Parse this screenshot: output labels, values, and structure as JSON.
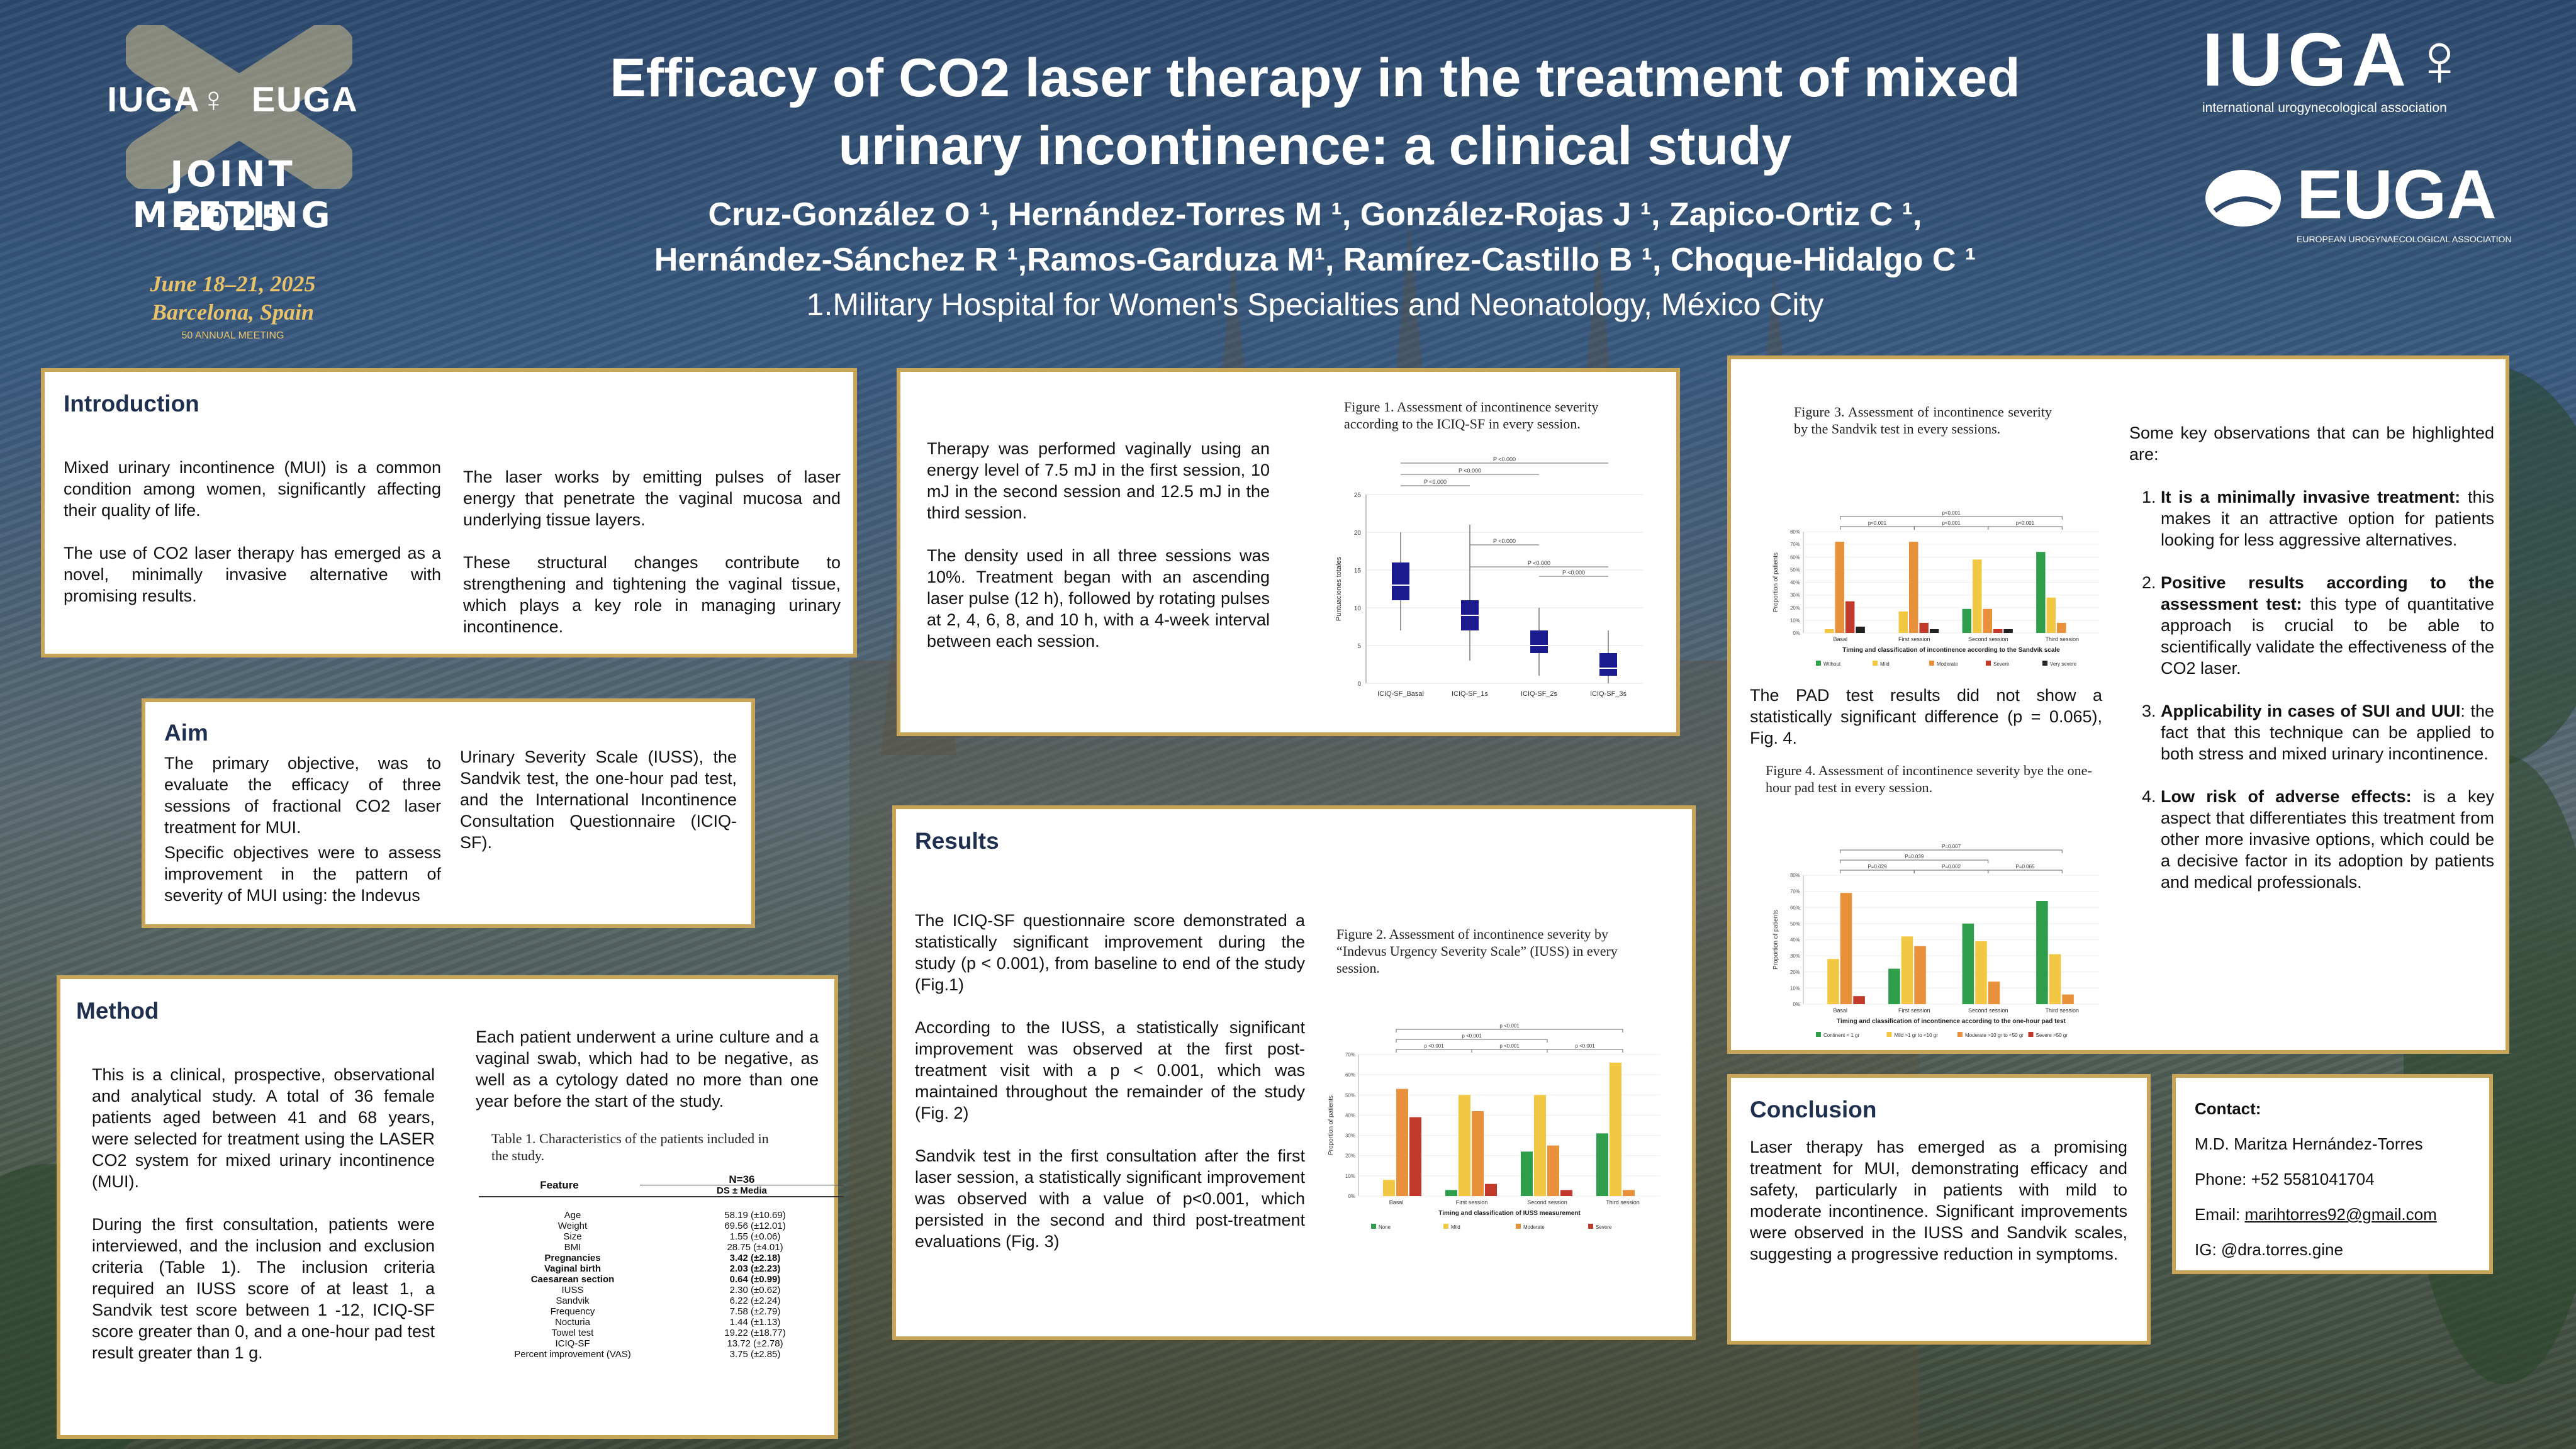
{
  "header": {
    "title_line1": "Efficacy of CO2 laser therapy in the treatment of mixed",
    "title_line2": "urinary incontinence: a clinical study",
    "authors_line1": "Cruz-González O ¹, Hernández-Torres M ¹, González-Rojas J ¹, Zapico-Ortiz C ¹,",
    "authors_line2": "Hernández-Sánchez R ¹,Ramos-Garduza M¹, Ramírez-Castillo B ¹, Choque-Hidalgo C ¹",
    "affiliation": "1.Military Hospital for Women's Specialties and Neonatology, México City"
  },
  "meeting": {
    "iuga": "IUGA♀",
    "euga": "EUGA",
    "line1": "JOINT MEETING",
    "line2": "2025",
    "dates": "June 18–21, 2025",
    "place": "Barcelona, Spain",
    "anniv": "50 ANNUAL MEETING"
  },
  "logos": {
    "iuga": "IUGA♀",
    "iuga_sub": "international urogynecological association",
    "euga": "EUGA",
    "euga_sub": "EUROPEAN UROGYNAECOLOGICAL ASSOCIATION"
  },
  "introduction": {
    "heading": "Introduction",
    "col1_p1": "Mixed urinary incontinence (MUI) is a common condition among women, significantly affecting their quality of life.",
    "col1_p2": "The use of CO2 laser therapy has emerged as a novel, minimally invasive alternative with promising results.",
    "col2_p1": "The laser works by emitting pulses of laser energy that penetrate the vaginal mucosa and underlying tissue layers.",
    "col2_p2": "These structural changes contribute to strengthening and tightening the vaginal tissue, which plays a key role in managing urinary incontinence."
  },
  "aim": {
    "heading": "Aim",
    "col1_p1": "The primary objective, was to evaluate the efficacy of three sessions of fractional CO2 laser treatment for MUI.",
    "col1_p2": "Specific objectives were to assess improvement in the pattern of severity of MUI  using: the Indevus",
    "col2_p1": "Urinary Severity Scale (IUSS), the Sandvik test, the one-hour pad test, and the International Incontinence Consultation Questionnaire (ICIQ-SF)."
  },
  "method": {
    "heading": "Method",
    "col1_p1": "This is a clinical, prospective, observational and analytical study. A total of 36 female patients aged between 41 and 68 years, were selected for treatment using the LASER CO2 system for mixed urinary incontinence (MUI).",
    "col1_p2": "During the first consultation, patients were interviewed, and the inclusion and exclusion criteria (Table 1). The inclusion criteria required an IUSS score of at least 1, a Sandvik test score between 1 -12, ICIQ-SF score greater than 0, and a one-hour pad test result greater than 1 g.",
    "col2_p1": "Each patient underwent a urine culture and a vaginal swab, which had to be negative, as well as a cytology dated no more than one year before the start of the study.",
    "table_caption": "Table 1. Characteristics of the patients included in the study.",
    "table_header_feature": "Feature",
    "table_header_n": "N=36",
    "table_header_ds": "DS ± Media",
    "table_rows": [
      {
        "feature": "Age",
        "value": "58.19 (±10.69)",
        "bold": false
      },
      {
        "feature": "Weight",
        "value": "69.56 (±12.01)",
        "bold": false
      },
      {
        "feature": "Size",
        "value": "1.55 (±0.06)",
        "bold": false
      },
      {
        "feature": "BMI",
        "value": "28.75 (±4.01)",
        "bold": false
      },
      {
        "feature": "Pregnancies",
        "value": "3.42 (±2.18)",
        "bold": true
      },
      {
        "feature": "Vaginal birth",
        "value": "2.03 (±2.23)",
        "bold": true
      },
      {
        "feature": "Caesarean section",
        "value": "0.64 (±0.99)",
        "bold": true
      },
      {
        "feature": "IUSS",
        "value": "2.30 (±0.62)",
        "bold": false
      },
      {
        "feature": "Sandvik",
        "value": "6.22 (±2.24)",
        "bold": false
      },
      {
        "feature": "Frequency",
        "value": "7.58 (±2.79)",
        "bold": false
      },
      {
        "feature": "Nocturia",
        "value": "1.44 (±1.13)",
        "bold": false
      },
      {
        "feature": "Towel test",
        "value": "19.22 (±18.77)",
        "bold": false
      },
      {
        "feature": "ICIQ-SF",
        "value": "13.72 (±2.78)",
        "bold": false
      },
      {
        "feature": "Percent improvement (VAS)",
        "value": "3.75 (±2.85)",
        "bold": false
      }
    ]
  },
  "therapy": {
    "p1": "Therapy was performed vaginally using an energy level of 7.5 mJ in the first session, 10 mJ in the second session and 12.5 mJ in the third session.",
    "p2": "The density used in all three sessions was 10%. Treatment began with an ascending laser pulse (12 h), followed by rotating pulses at 2, 4, 6, 8, and 10 h, with a 4-week interval between each session.",
    "fig1_caption": "Figure 1. Assessment of incontinence severity according to the ICIQ-SF in every session."
  },
  "results": {
    "heading": "Results",
    "p1": "The ICIQ-SF questionnaire score demonstrated a statistically significant improvement during the study (p < 0.001), from baseline to end of the study (Fig.1)",
    "p2": "According to the IUSS, a statistically significant improvement was observed at the first post-treatment visit with a p < 0.001, which was maintained throughout the remainder of the study (Fig. 2)",
    "p3": "Sandvik test  in the first consultation after the first laser session, a statistically significant improvement was observed with a value of p<0.001, which persisted in the second and third post-treatment evaluations (Fig. 3)",
    "fig2_caption": "Figure 2. Assessment of incontinence severity by “Indevus Urgency Severity Scale” (IUSS) in every session."
  },
  "observations": {
    "fig3_caption": "Figure 3. Assessment of incontinence severity by the Sandvik test in every sessions.",
    "pad_text": "The PAD test results did not show a statistically significant difference (p = 0.065), Fig. 4.",
    "fig4_caption": "Figure 4. Assessment of incontinence severity bye the one-hour pad test in every session.",
    "intro": "Some key observations that can be highlighted are:",
    "items": [
      {
        "bold": "It is a minimally invasive treatment:",
        "text": " this makes it an attractive option for patients looking for less aggressive alternatives."
      },
      {
        "bold": "Positive results according to the assessment test:",
        "text": " this type of quantitative approach is crucial to be able to scientifically validate the effectiveness of the CO2 laser."
      },
      {
        "bold": "Applicability in cases of SUI and UUI",
        "text": ": the fact that this technique can be applied to both stress and mixed urinary incontinence."
      },
      {
        "bold": "Low risk of adverse effects:",
        "text": " is a key aspect that differentiates this treatment from other more invasive options, which could be a decisive factor in its adoption by patients and medical professionals."
      }
    ]
  },
  "conclusion": {
    "heading": "Conclusion",
    "text": "Laser therapy has emerged as a promising treatment for MUI, demonstrating efficacy and safety, particularly in patients with mild to moderate incontinence. Significant improvements were observed in the IUSS and Sandvik scales, suggesting a progressive reduction in symptoms."
  },
  "contact": {
    "heading": "Contact:",
    "name": "M.D. Maritza Hernández-Torres",
    "phone": "Phone: +52 5581041704",
    "email_label": "Email: ",
    "email": "marihtorres92@gmail.com",
    "ig": "IG: @dra.torres.gine"
  },
  "chart_data": [
    {
      "type": "box",
      "id": "fig1",
      "ylabel": "Puntuaciones totales",
      "categories": [
        "ICIQ-SF_Basal",
        "ICIQ-SF_1s",
        "ICIQ-SF_2s",
        "ICIQ-SF_3s"
      ],
      "ylim": [
        0,
        25
      ],
      "boxes": [
        {
          "min": 7,
          "q1": 11,
          "median": 13,
          "q3": 16,
          "max": 20
        },
        {
          "min": 3,
          "q1": 7,
          "median": 9,
          "q3": 11,
          "max": 21
        },
        {
          "min": 1,
          "q1": 4,
          "median": 5,
          "q3": 7,
          "max": 10
        },
        {
          "min": 0,
          "q1": 1,
          "median": 2,
          "q3": 4,
          "max": 7
        }
      ],
      "annotations": [
        "P <0.000",
        "P <0.000",
        "P <0.000",
        "P <0.000",
        "P <0.000",
        "P <0.000"
      ]
    },
    {
      "type": "bar",
      "id": "fig2",
      "xlabel": "Timing and classification of IUSS measurement",
      "ylabel": "Proportion of patients",
      "categories": [
        "Basal",
        "First session",
        "Second session",
        "Third session"
      ],
      "ylim": [
        0,
        0.7
      ],
      "series": [
        {
          "name": "None",
          "color": "#2e9e4a",
          "values": [
            0.0,
            0.03,
            0.22,
            0.31
          ]
        },
        {
          "name": "Mild",
          "color": "#f2c744",
          "values": [
            0.08,
            0.5,
            0.5,
            0.66
          ]
        },
        {
          "name": "Moderate",
          "color": "#e8903a",
          "values": [
            0.53,
            0.42,
            0.25,
            0.03
          ]
        },
        {
          "name": "Severe",
          "color": "#c0392b",
          "values": [
            0.39,
            0.06,
            0.03,
            0.0
          ]
        }
      ],
      "annotations": [
        "p <0.001",
        "p <0.001",
        "p <0.001",
        "p <0.001",
        "p <0.001"
      ]
    },
    {
      "type": "bar",
      "id": "fig3",
      "xlabel": "Timing and classification of incontinence according to the Sandvik scale",
      "ylabel": "Proportion of patients",
      "categories": [
        "Basal",
        "First session",
        "Second session",
        "Third session"
      ],
      "ylim": [
        0,
        0.8
      ],
      "series": [
        {
          "name": "Without",
          "color": "#2e9e4a",
          "values": [
            0.0,
            0.0,
            0.19,
            0.64
          ]
        },
        {
          "name": "Mild",
          "color": "#f2c744",
          "values": [
            0.03,
            0.17,
            0.58,
            0.28
          ]
        },
        {
          "name": "Moderate",
          "color": "#e8903a",
          "values": [
            0.72,
            0.72,
            0.19,
            0.08
          ]
        },
        {
          "name": "Severe",
          "color": "#c0392b",
          "values": [
            0.25,
            0.08,
            0.03,
            0.0
          ]
        },
        {
          "name": "Very severe",
          "color": "#222222",
          "values": [
            0.05,
            0.03,
            0.03,
            0.0
          ]
        }
      ],
      "annotations": [
        "p<0.001",
        "p<0.001",
        "p<0.001",
        "p<0.001"
      ]
    },
    {
      "type": "bar",
      "id": "fig4",
      "xlabel": "Timing and classification of incontinence according to the one-hour pad test",
      "ylabel": "Proportion of patients",
      "categories": [
        "Basal",
        "First session",
        "Second session",
        "Third session"
      ],
      "ylim": [
        0,
        0.8
      ],
      "series": [
        {
          "name": "Continent < 1 gr",
          "color": "#2e9e4a",
          "values": [
            0.0,
            0.22,
            0.5,
            0.64
          ]
        },
        {
          "name": "Mild >1 gr to <10 gr",
          "color": "#f2c744",
          "values": [
            0.28,
            0.42,
            0.39,
            0.31
          ]
        },
        {
          "name": "Moderate >10 gr to <50 gr",
          "color": "#e8903a",
          "values": [
            0.69,
            0.36,
            0.14,
            0.06
          ]
        },
        {
          "name": "Severe >50 gr",
          "color": "#c0392b",
          "values": [
            0.05,
            0.0,
            0.0,
            0.0
          ]
        }
      ],
      "annotations": [
        "P=0.029",
        "P=0.002",
        "P=0.065",
        "P=0.039",
        "P=0.007"
      ]
    }
  ]
}
